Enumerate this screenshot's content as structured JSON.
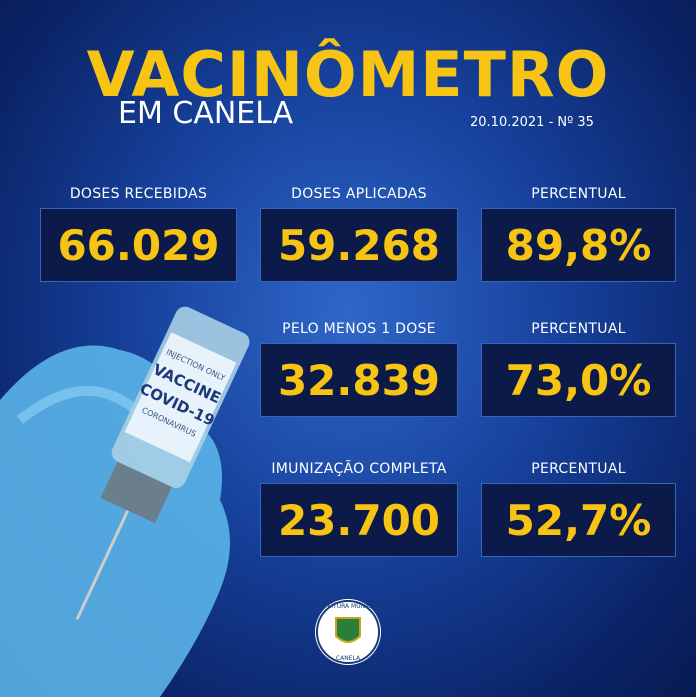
{
  "header": {
    "title": "VACINÔMETRO",
    "subtitle": "EM CANELA",
    "date": "20.10.2021 - Nº 35"
  },
  "stats": [
    {
      "label": "DOSES RECEBIDAS",
      "value": "66.029"
    },
    {
      "label": "DOSES APLICADAS",
      "value": "59.268"
    },
    {
      "label": "PERCENTUAL",
      "value": "89,8%"
    },
    {
      "label": "PELO MENOS 1 DOSE",
      "value": "32.839"
    },
    {
      "label": "PERCENTUAL",
      "value": "73,0%"
    },
    {
      "label": "IMUNIZAÇÃO COMPLETA",
      "value": "23.700"
    },
    {
      "label": "PERCENTUAL",
      "value": "52,7%"
    }
  ],
  "vial": {
    "line1": "COVID-19",
    "line2": "VACCINE",
    "line3": "CORONAVIRUS",
    "line4": "INJECTION ONLY"
  },
  "logo": {
    "top": "PREFEITURA MUNICIPAL",
    "bottom": "CANELA"
  }
}
